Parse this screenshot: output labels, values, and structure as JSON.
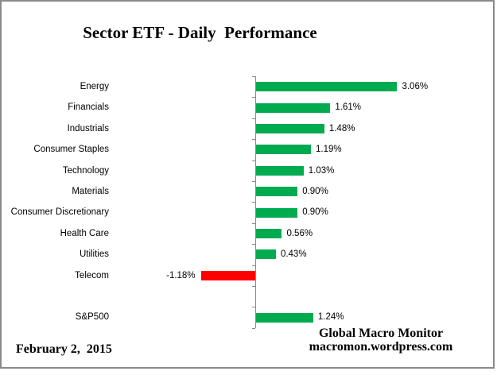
{
  "title": "Sector ETF - Daily  Performance",
  "footer": {
    "date": "February 2,  2015",
    "credit_line1": "Global Macro Monitor",
    "credit_line2": "macromon.wordpress.com"
  },
  "colors": {
    "positive": "#00AB50",
    "negative": "#FF0000",
    "axis": "#8A8A8A",
    "frame": "#8A8A8A",
    "text": "#000000"
  },
  "chart_data": {
    "type": "bar",
    "orientation": "horizontal",
    "title": "Sector ETF - Daily  Performance",
    "xlabel": "",
    "ylabel": "",
    "gridlines": false,
    "legend": false,
    "value_axis_tick_labels_visible": false,
    "categories": [
      "Energy",
      "Financials",
      "Industrials",
      "Consumer Staples",
      "Technology",
      "Materials",
      "Consumer Discretionary",
      "Health Care",
      "Utilities",
      "Telecom",
      "",
      "S&P500"
    ],
    "values": [
      3.06,
      1.61,
      1.48,
      1.19,
      1.03,
      0.9,
      0.9,
      0.56,
      0.43,
      -1.18,
      null,
      1.24
    ],
    "value_labels": [
      "3.06%",
      "1.61%",
      "1.48%",
      "1.19%",
      "1.03%",
      "0.90%",
      "0.90%",
      "0.56%",
      "0.43%",
      "-1.18%",
      null,
      "1.24%"
    ]
  }
}
